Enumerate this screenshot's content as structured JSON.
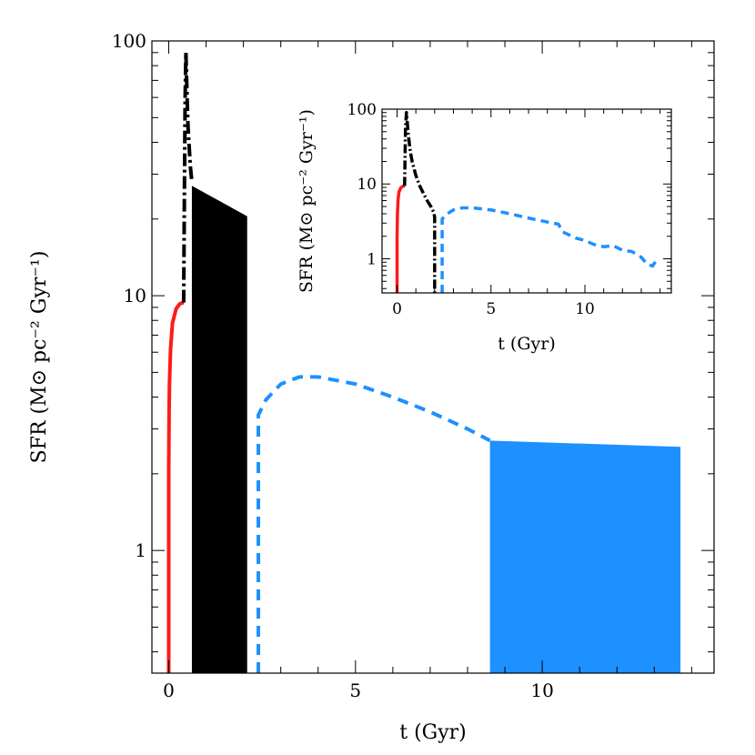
{
  "chart_data": [
    {
      "type": "line",
      "panel": "main",
      "xlabel": "t (Gyr)",
      "ylabel": "SFR (M⊙ pc⁻² Gyr⁻¹)",
      "xscale": "linear",
      "yscale": "log",
      "xlim": [
        -0.45,
        14.6
      ],
      "ylim": [
        0.33,
        100
      ],
      "xticks": [
        0,
        5,
        10
      ],
      "xtick_labels": [
        "0",
        "5",
        "10"
      ],
      "yticks": [
        1,
        10,
        100
      ],
      "ytick_labels": [
        "1",
        "10",
        "100"
      ],
      "series": [
        {
          "color": "#ff1a1a",
          "style": "solid",
          "x": [
            0.0,
            0.0,
            0.01,
            0.02,
            0.05,
            0.1,
            0.2,
            0.3,
            0.4
          ],
          "y": [
            0.33,
            2.0,
            3.5,
            4.5,
            6.2,
            7.8,
            8.9,
            9.3,
            9.4
          ]
        },
        {
          "color": "#000000",
          "style": "dashdot",
          "x": [
            0.4,
            0.42,
            0.44,
            0.46,
            0.48,
            0.5,
            0.52,
            0.55,
            0.58,
            0.62
          ],
          "y": [
            9.4,
            25,
            60,
            90,
            70,
            55,
            45,
            38,
            32,
            28
          ]
        },
        {
          "color": "#000000",
          "style": "oscillating_band",
          "x": [
            0.62,
            2.1
          ],
          "y_low": [
            0.33,
            0.33
          ],
          "y_high": [
            27,
            20.5
          ]
        },
        {
          "color": "#1e90ff",
          "style": "dashed",
          "x": [
            2.4,
            2.4,
            2.6,
            3.0,
            3.5,
            4.0,
            5.0,
            6.0,
            7.0,
            8.0,
            8.6
          ],
          "y": [
            0.33,
            3.4,
            3.9,
            4.5,
            4.8,
            4.8,
            4.5,
            4.0,
            3.5,
            3.0,
            2.7
          ]
        },
        {
          "color": "#1e90ff",
          "style": "oscillating_band",
          "x": [
            8.6,
            13.7
          ],
          "y_low": [
            0.33,
            0.33
          ],
          "y_high": [
            2.7,
            2.55
          ]
        }
      ]
    },
    {
      "type": "line",
      "panel": "inset",
      "xlabel": "t (Gyr)",
      "ylabel": "SFR (M⊙ pc⁻² Gyr⁻¹)",
      "xscale": "linear",
      "yscale": "log",
      "xlim": [
        -0.8,
        14.6
      ],
      "ylim": [
        0.35,
        100
      ],
      "xticks": [
        0,
        5,
        10
      ],
      "xtick_labels": [
        "0",
        "5",
        "10"
      ],
      "yticks": [
        1,
        10,
        100
      ],
      "ytick_labels": [
        "1",
        "10",
        "100"
      ],
      "series": [
        {
          "color": "#ff1a1a",
          "style": "solid",
          "x": [
            0.0,
            0.0,
            0.02,
            0.05,
            0.1,
            0.2,
            0.3,
            0.4
          ],
          "y": [
            0.35,
            2.0,
            4.0,
            6.0,
            7.8,
            8.9,
            9.3,
            9.4
          ]
        },
        {
          "color": "#000000",
          "style": "dashdot",
          "x": [
            0.4,
            0.45,
            0.5,
            0.6,
            0.7,
            0.8,
            1.0,
            1.2,
            1.4,
            1.6,
            1.8,
            1.95,
            2.0,
            2.0
          ],
          "y": [
            9.4,
            60,
            90,
            45,
            28,
            20,
            13,
            9.5,
            7.5,
            6.0,
            5.0,
            4.2,
            3.6,
            0.35
          ]
        },
        {
          "color": "#1e90ff",
          "style": "dashed",
          "x": [
            2.4,
            2.4,
            2.6,
            3.0,
            3.5,
            4.0,
            5.0,
            6.0,
            7.0,
            8.0,
            8.6,
            8.8,
            9.5,
            10.0,
            10.5,
            11.0,
            11.5,
            12.0,
            12.5,
            13.0,
            13.3,
            13.6,
            13.8
          ],
          "y": [
            0.35,
            3.4,
            3.9,
            4.5,
            4.8,
            4.8,
            4.5,
            4.0,
            3.5,
            3.1,
            2.9,
            2.3,
            1.9,
            1.75,
            1.55,
            1.45,
            1.5,
            1.3,
            1.25,
            1.05,
            0.85,
            0.8,
            0.95
          ]
        }
      ]
    }
  ]
}
